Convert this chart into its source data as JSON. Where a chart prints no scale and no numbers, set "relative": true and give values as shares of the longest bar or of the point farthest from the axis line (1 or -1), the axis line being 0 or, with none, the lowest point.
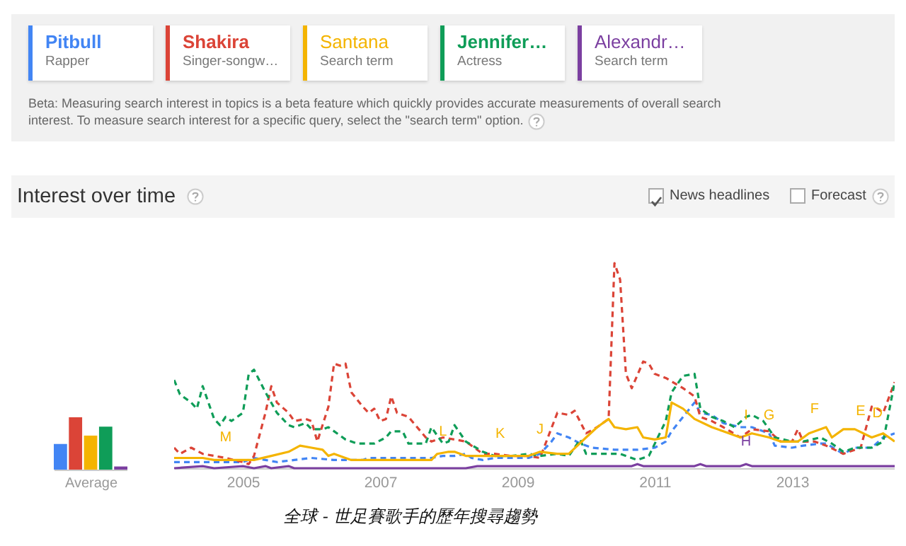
{
  "chart_data": [
    {
      "type": "bar",
      "xlabel": "Average",
      "categories": [
        null,
        null,
        null,
        null,
        null
      ],
      "values": [
        0.49,
        1,
        0.65,
        0.82,
        0.06
      ],
      "colors": [
        "#4285f4",
        "#db4437",
        "#f4b400",
        "#0f9d58",
        "#7b3fa0"
      ],
      "relative": true
    },
    {
      "type": "line",
      "title": "Interest over time",
      "legend": "top",
      "relative": true,
      "xlim": [
        "2004-01",
        "2014-07"
      ],
      "xticks": [
        "2005",
        "2007",
        "2009",
        "2011",
        "2013"
      ],
      "series": [
        {
          "name": "Pitbull",
          "color": "#4285f4",
          "line_style": "dashed",
          "x": [
            "2004-01",
            "2004-08",
            "2005-01",
            "2005-03",
            "2005-05",
            "2005-07",
            "2005-10",
            "2006-01",
            "2006-05",
            "2006-10",
            "2006-11",
            "2007-03",
            "2007-10",
            "2007-12",
            "2008-02",
            "2008-04",
            "2008-05",
            "2008-07",
            "2008-09",
            "2009-03",
            "2009-05",
            "2009-07",
            "2009-08",
            "2009-10",
            "2009-12",
            "2010-02",
            "2010-06",
            "2010-10",
            "2011-01",
            "2011-03",
            "2011-04",
            "2011-06",
            "2011-08",
            "2011-09",
            "2011-11",
            "2012-01",
            "2012-04",
            "2012-06",
            "2012-09",
            "2012-10",
            "2013-01",
            "2013-03",
            "2013-06",
            "2013-07",
            "2013-10",
            "2013-12",
            "2014-03",
            "2014-05",
            "2014-07"
          ],
          "values": [
            0.03,
            0.03,
            0.03,
            0.05,
            0.04,
            0.03,
            0.04,
            0.05,
            0.04,
            0.04,
            0.05,
            0.05,
            0.05,
            0.06,
            0.06,
            0.07,
            0.05,
            0.04,
            0.05,
            0.05,
            0.07,
            0.13,
            0.17,
            0.15,
            0.12,
            0.1,
            0.09,
            0.09,
            0.1,
            0.13,
            0.18,
            0.25,
            0.32,
            0.27,
            0.26,
            0.22,
            0.2,
            0.2,
            0.17,
            0.11,
            0.1,
            0.11,
            0.12,
            0.12,
            0.07,
            0.1,
            0.1,
            0.15,
            0.17
          ]
        },
        {
          "name": "Shakira",
          "color": "#db4437",
          "line_style": "dashed",
          "x": [
            "2004-01",
            "2004-02",
            "2004-04",
            "2004-06",
            "2004-08",
            "2004-10",
            "2005-01",
            "2005-02",
            "2005-03",
            "2005-05",
            "2005-06",
            "2005-07",
            "2005-09",
            "2005-10",
            "2005-12",
            "2006-01",
            "2006-02",
            "2006-04",
            "2006-05",
            "2006-06",
            "2006-07",
            "2006-08",
            "2006-10",
            "2006-11",
            "2006-12",
            "2007-01",
            "2007-02",
            "2007-03",
            "2007-04",
            "2007-06",
            "2007-09",
            "2007-10",
            "2007-12",
            "2008-02",
            "2008-04",
            "2008-07",
            "2008-09",
            "2008-12",
            "2009-03",
            "2009-05",
            "2009-08",
            "2009-10",
            "2009-11",
            "2010-01",
            "2010-03",
            "2010-05",
            "2010-06",
            "2010-07",
            "2010-08",
            "2010-09",
            "2010-11",
            "2010-12",
            "2011-01",
            "2011-03",
            "2011-06",
            "2011-08",
            "2011-09",
            "2011-11",
            "2012-01",
            "2012-04",
            "2012-06",
            "2012-09",
            "2012-11",
            "2013-01",
            "2013-02",
            "2013-03",
            "2013-05",
            "2013-07",
            "2013-10",
            "2014-01",
            "2014-03",
            "2014-04",
            "2014-05",
            "2014-07"
          ],
          "values": [
            0.1,
            0.07,
            0.1,
            0.07,
            0.06,
            0.05,
            0.03,
            0.02,
            0.06,
            0.27,
            0.4,
            0.32,
            0.27,
            0.23,
            0.24,
            0.23,
            0.13,
            0.3,
            0.51,
            0.5,
            0.51,
            0.37,
            0.3,
            0.27,
            0.29,
            0.23,
            0.24,
            0.35,
            0.27,
            0.25,
            0.15,
            0.13,
            0.15,
            0.14,
            0.13,
            0.07,
            0.07,
            0.06,
            0.06,
            0.05,
            0.27,
            0.26,
            0.28,
            0.17,
            0.2,
            0.24,
            1,
            0.92,
            0.46,
            0.39,
            0.52,
            0.51,
            0.46,
            0.44,
            0.39,
            0.35,
            0.25,
            0.23,
            0.2,
            0.15,
            0.19,
            0.18,
            0.13,
            0.13,
            0.19,
            0.13,
            0.13,
            0.11,
            0.07,
            0.1,
            0.3,
            0.29,
            0.27,
            0.42
          ]
        },
        {
          "name": "Santana",
          "color": "#f4b400",
          "line_style": "solid",
          "x": [
            "2004-01",
            "2004-06",
            "2004-08",
            "2005-01",
            "2005-03",
            "2005-06",
            "2005-09",
            "2005-11",
            "2006-01",
            "2006-03",
            "2006-04",
            "2006-05",
            "2006-08",
            "2006-11",
            "2007-03",
            "2007-10",
            "2007-11",
            "2008-01",
            "2008-02",
            "2008-04",
            "2008-07",
            "2008-11",
            "2009-03",
            "2009-05",
            "2009-08",
            "2009-10",
            "2010-01",
            "2010-03",
            "2010-05",
            "2010-06",
            "2010-08",
            "2010-10",
            "2010-11",
            "2011-01",
            "2011-03",
            "2011-04",
            "2011-06",
            "2011-08",
            "2011-11",
            "2012-01",
            "2012-04",
            "2012-06",
            "2012-09",
            "2012-11",
            "2013-02",
            "2013-04",
            "2013-07",
            "2013-08",
            "2013-10",
            "2013-12",
            "2014-03",
            "2014-05",
            "2014-07"
          ],
          "values": [
            0.05,
            0.05,
            0.04,
            0.04,
            0.04,
            0.06,
            0.08,
            0.11,
            0.1,
            0.09,
            0.06,
            0.07,
            0.04,
            0.04,
            0.04,
            0.04,
            0.07,
            0.08,
            0.08,
            0.06,
            0.06,
            0.06,
            0.06,
            0.08,
            0.07,
            0.07,
            0.15,
            0.2,
            0.24,
            0.2,
            0.19,
            0.2,
            0.15,
            0.14,
            0.15,
            0.32,
            0.29,
            0.24,
            0.2,
            0.18,
            0.15,
            0.17,
            0.15,
            0.13,
            0.13,
            0.17,
            0.2,
            0.15,
            0.19,
            0.19,
            0.15,
            0.17,
            0.13
          ]
        },
        {
          "name": "Jennifer…",
          "color": "#0f9d58",
          "line_style": "dashed",
          "x": [
            "2004-01",
            "2004-02",
            "2004-04",
            "2004-05",
            "2004-06",
            "2004-08",
            "2004-09",
            "2004-10",
            "2004-11",
            "2005-01",
            "2005-02",
            "2005-03",
            "2005-05",
            "2005-07",
            "2005-09",
            "2005-10",
            "2005-12",
            "2006-01",
            "2006-03",
            "2006-04",
            "2006-07",
            "2006-09",
            "2006-12",
            "2007-02",
            "2007-03",
            "2007-05",
            "2007-06",
            "2007-09",
            "2007-10",
            "2007-12",
            "2008-01",
            "2008-02",
            "2008-04",
            "2008-07",
            "2008-09",
            "2008-12",
            "2009-03",
            "2009-05",
            "2009-08",
            "2009-10",
            "2009-12",
            "2010-01",
            "2010-04",
            "2010-07",
            "2010-10",
            "2010-12",
            "2011-03",
            "2011-04",
            "2011-06",
            "2011-08",
            "2011-09",
            "2011-11",
            "2012-01",
            "2012-03",
            "2012-05",
            "2012-06",
            "2012-08",
            "2012-10",
            "2013-01",
            "2013-03",
            "2013-06",
            "2013-08",
            "2013-10",
            "2013-12",
            "2014-03",
            "2014-05",
            "2014-07"
          ],
          "values": [
            0.43,
            0.36,
            0.32,
            0.29,
            0.4,
            0.24,
            0.21,
            0.25,
            0.23,
            0.27,
            0.46,
            0.48,
            0.37,
            0.27,
            0.21,
            0.2,
            0.22,
            0.19,
            0.19,
            0.2,
            0.14,
            0.12,
            0.12,
            0.15,
            0.18,
            0.18,
            0.12,
            0.12,
            0.2,
            0.12,
            0.13,
            0.21,
            0.13,
            0.08,
            0.06,
            0.06,
            0.07,
            0.06,
            0.07,
            0.06,
            0.14,
            0.07,
            0.07,
            0.07,
            0.04,
            0.06,
            0.23,
            0.37,
            0.45,
            0.46,
            0.29,
            0.25,
            0.23,
            0.2,
            0.25,
            0.26,
            0.23,
            0.15,
            0.13,
            0.13,
            0.15,
            0.12,
            0.08,
            0.1,
            0.1,
            0.13,
            0.42
          ]
        },
        {
          "name": "Alexandr…",
          "color": "#7b3fa0",
          "line_style": "solid",
          "x": [
            "2004-01",
            "2004-06",
            "2004-08",
            "2005-01",
            "2005-03",
            "2005-05",
            "2005-06",
            "2005-09",
            "2005-10",
            "2008-04",
            "2008-06",
            "2010-09",
            "2010-10",
            "2010-11",
            "2011-08",
            "2011-09",
            "2011-10",
            "2012-04",
            "2012-05",
            "2012-06",
            "2014-07"
          ],
          "values": [
            0,
            0.01,
            0,
            0.01,
            0,
            0.01,
            0,
            0.01,
            0,
            0,
            0.01,
            0.01,
            0.02,
            0.01,
            0.01,
            0.02,
            0.01,
            0.01,
            0.02,
            0.01,
            0.01
          ]
        }
      ],
      "annotations": [
        "Rapper",
        "Singer-songw…",
        "Search term",
        "Actress",
        "Search term",
        "Beta: Measuring search interest in topics is a beta feature which quickly provides accurate measurements of overall search interest. To measure search interest for a specific query, select the \"search term\" option.",
        "News headlines",
        "Forecast",
        "全球 - 世足賽歌手的歷年搜尋趨勢",
        {
          "text": "M",
          "x": "2004-10",
          "y": 0.04
        },
        {
          "text": "L",
          "x": "2007-12",
          "y": 0.07
        },
        {
          "text": "K",
          "x": "2008-10",
          "y": 0.06
        },
        {
          "text": "J",
          "x": "2009-05",
          "y": 0.08
        },
        {
          "text": "I",
          "x": "2012-05",
          "y": 0.15
        },
        {
          "text": "G",
          "x": "2012-09",
          "y": 0.15
        },
        {
          "text": "F",
          "x": "2013-05",
          "y": 0.18
        },
        {
          "text": "E",
          "x": "2014-01",
          "y": 0.17
        },
        {
          "text": "D",
          "x": "2014-04",
          "y": 0.16
        },
        {
          "text": "H",
          "x": "2012-05",
          "y": 0.02
        }
      ]
    }
  ]
}
